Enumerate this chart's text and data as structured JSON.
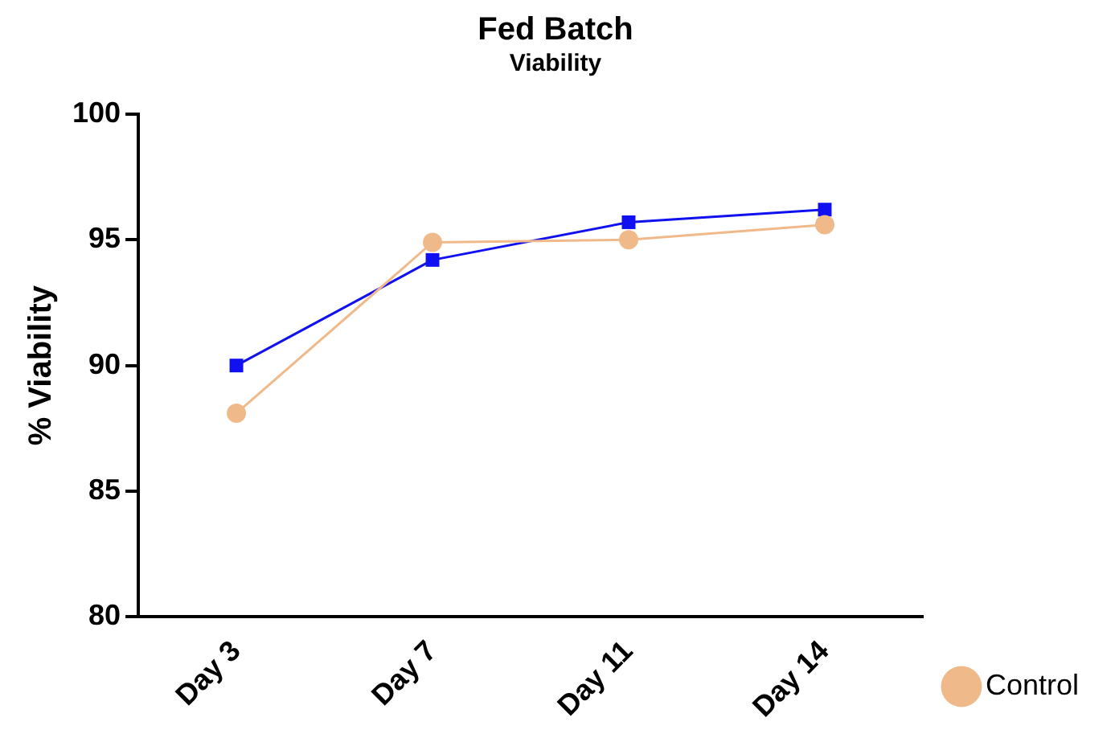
{
  "chart_data": {
    "type": "line",
    "title": "Fed Batch",
    "subtitle": "Viability",
    "ylabel": "% Viability",
    "categories": [
      "Day 3",
      "Day 7",
      "Day 11",
      "Day 14"
    ],
    "series": [
      {
        "name": "Control",
        "color": "#f0b98a",
        "marker": "circle",
        "values": [
          88.1,
          94.9,
          95.0,
          95.6
        ]
      },
      {
        "color": "#1010f0",
        "marker": "square",
        "values": [
          90.0,
          94.2,
          95.7,
          96.2
        ]
      }
    ],
    "ylim": [
      80,
      100
    ],
    "yticks": [
      80,
      85,
      90,
      95,
      100
    ],
    "grid": false,
    "legend": "bottom right"
  }
}
